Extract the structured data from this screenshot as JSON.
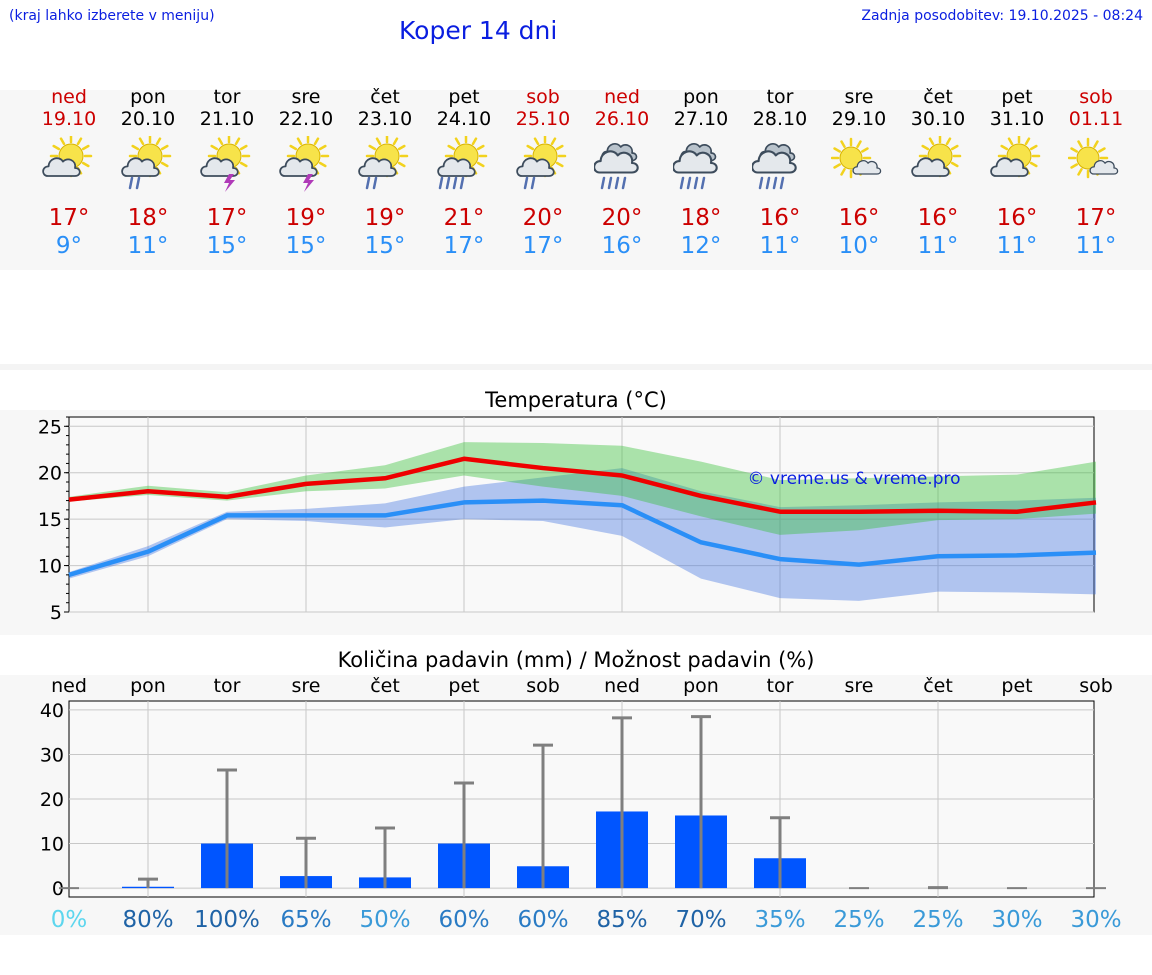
{
  "header": {
    "menu_hint": "(kraj lahko izberete v meniju)",
    "title": "Koper 14 dni",
    "updated": "Zadnja posodobitev: 19.10.2025 - 08:24"
  },
  "colors": {
    "weekend": "#cc0000",
    "max_temp": "#cc0000",
    "min_temp": "#2a8ff7",
    "bar": "#0055ff",
    "error": "#7f7f7f"
  },
  "days": [
    {
      "name": "ned",
      "date": "19.10",
      "weekend": true,
      "icon": "sun-cloud-icon",
      "max": "17°",
      "min": "9°"
    },
    {
      "name": "pon",
      "date": "20.10",
      "weekend": false,
      "icon": "sun-cloud-rain-icon",
      "max": "18°",
      "min": "11°"
    },
    {
      "name": "tor",
      "date": "21.10",
      "weekend": false,
      "icon": "sun-cloud-thunder-icon",
      "max": "17°",
      "min": "15°"
    },
    {
      "name": "sre",
      "date": "22.10",
      "weekend": false,
      "icon": "sun-cloud-thunder-icon",
      "max": "19°",
      "min": "15°"
    },
    {
      "name": "čet",
      "date": "23.10",
      "weekend": false,
      "icon": "sun-cloud-rain-icon",
      "max": "19°",
      "min": "15°"
    },
    {
      "name": "pet",
      "date": "24.10",
      "weekend": false,
      "icon": "sun-cloud-heavy-rain-icon",
      "max": "21°",
      "min": "17°"
    },
    {
      "name": "sob",
      "date": "25.10",
      "weekend": true,
      "icon": "sun-cloud-rain-icon",
      "max": "20°",
      "min": "17°"
    },
    {
      "name": "ned",
      "date": "26.10",
      "weekend": true,
      "icon": "cloud-heavy-rain-icon",
      "max": "20°",
      "min": "16°"
    },
    {
      "name": "pon",
      "date": "27.10",
      "weekend": false,
      "icon": "cloud-heavy-rain-icon",
      "max": "18°",
      "min": "12°"
    },
    {
      "name": "tor",
      "date": "28.10",
      "weekend": false,
      "icon": "cloud-heavy-rain-icon",
      "max": "16°",
      "min": "11°"
    },
    {
      "name": "sre",
      "date": "29.10",
      "weekend": false,
      "icon": "sun-small-cloud-icon",
      "max": "16°",
      "min": "10°"
    },
    {
      "name": "čet",
      "date": "30.10",
      "weekend": false,
      "icon": "sun-cloud-icon",
      "max": "16°",
      "min": "11°"
    },
    {
      "name": "pet",
      "date": "31.10",
      "weekend": false,
      "icon": "sun-cloud-icon",
      "max": "16°",
      "min": "11°"
    },
    {
      "name": "sob",
      "date": "01.11",
      "weekend": true,
      "icon": "sun-small-cloud-icon",
      "max": "17°",
      "min": "11°"
    }
  ],
  "chart_data": [
    {
      "type": "line",
      "title": "Temperatura (°C)",
      "watermark": "© vreme.us & vreme.pro",
      "x": [
        0,
        1,
        2,
        3,
        4,
        5,
        6,
        7,
        8,
        9,
        10,
        11,
        12,
        13
      ],
      "ylim": [
        5,
        26
      ],
      "yticks": [
        5,
        10,
        15,
        20,
        25
      ],
      "grid": true,
      "series": [
        {
          "name": "max",
          "values": [
            17.1,
            18.0,
            17.4,
            18.8,
            19.4,
            21.5,
            20.5,
            19.7,
            17.5,
            15.8,
            15.8,
            15.9,
            15.8,
            16.8
          ]
        },
        {
          "name": "min",
          "values": [
            9.0,
            11.5,
            15.4,
            15.4,
            15.4,
            16.8,
            17.0,
            16.5,
            12.5,
            10.7,
            10.1,
            11.0,
            11.1,
            11.4
          ]
        }
      ],
      "bands": [
        {
          "name": "max range",
          "low": [
            16.9,
            17.6,
            17.0,
            18.0,
            18.3,
            19.7,
            18.5,
            17.5,
            15.3,
            13.3,
            13.8,
            14.9,
            15.0,
            15.6
          ],
          "high": [
            17.4,
            18.6,
            17.9,
            19.7,
            20.8,
            23.3,
            23.2,
            22.9,
            21.2,
            19.2,
            19.4,
            19.6,
            19.8,
            21.2
          ]
        },
        {
          "name": "min range",
          "low": [
            8.6,
            11.0,
            15.0,
            14.8,
            14.1,
            15.0,
            14.8,
            13.2,
            8.6,
            6.5,
            6.2,
            7.2,
            7.1,
            6.9
          ]
        },
        {
          "name": "min range high",
          "values": [
            9.3,
            12.1,
            15.8,
            16.1,
            16.7,
            18.5,
            19.5,
            20.5,
            18.0,
            16.3,
            16.5,
            16.8,
            17.0,
            17.3
          ]
        }
      ]
    },
    {
      "type": "bar",
      "title": "Količina padavin (mm) / Možnost padavin (%)",
      "categories": [
        "ned",
        "pon",
        "tor",
        "sre",
        "čet",
        "pet",
        "sob",
        "ned",
        "pon",
        "tor",
        "sre",
        "čet",
        "pet",
        "sob"
      ],
      "values": [
        0,
        0.3,
        10,
        2.7,
        2.4,
        10,
        4.9,
        17.2,
        16.3,
        6.7,
        0,
        0,
        0,
        0
      ],
      "error_high": [
        0,
        2,
        26.5,
        11.2,
        13.5,
        23.6,
        32.1,
        38.2,
        38.5,
        15.8,
        0,
        0.1,
        0,
        0
      ],
      "probability": [
        "0%",
        "80%",
        "100%",
        "65%",
        "50%",
        "60%",
        "60%",
        "85%",
        "70%",
        "35%",
        "25%",
        "25%",
        "30%",
        "30%"
      ],
      "probability_colors": [
        "#5dd6ee",
        "#1f63a6",
        "#1f63a6",
        "#2a7bc4",
        "#3a9ad8",
        "#2a7bc4",
        "#2a7bc4",
        "#1f63a6",
        "#1f63a6",
        "#3a9ad8",
        "#3a9ad8",
        "#3a9ad8",
        "#3a9ad8",
        "#3a9ad8"
      ],
      "ylim": [
        -2,
        42
      ],
      "yticks": [
        0,
        10,
        20,
        30,
        40
      ],
      "grid": true
    }
  ]
}
